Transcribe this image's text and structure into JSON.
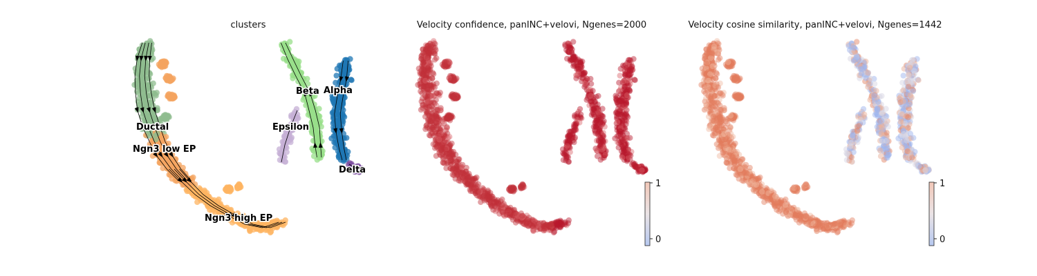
{
  "chart_data": [
    {
      "type": "scatter",
      "title": "clusters",
      "legend": "on data",
      "colors": {
        "Ductal": "#8fbc8f",
        "Ngn3 low EP": "#f4a460",
        "Ngn3 high EP": "#fdb462",
        "Epsilon": "#c5b0d5",
        "Beta": "#98df8a",
        "Alpha": "#1f77b4",
        "Delta": "#7e4fa0"
      },
      "series": [
        {
          "name": "Ductal"
        },
        {
          "name": "Ngn3 low EP"
        },
        {
          "name": "Ngn3 high EP"
        },
        {
          "name": "Epsilon"
        },
        {
          "name": "Beta"
        },
        {
          "name": "Alpha"
        },
        {
          "name": "Delta"
        }
      ],
      "overlay": "velocity streamlines"
    },
    {
      "type": "scatter",
      "title": "Velocity confidence, panINC+velovi, Ngenes=2000",
      "colorbar": {
        "ticks": [
          "1",
          "0"
        ],
        "range": [
          0,
          1
        ],
        "cmap": "coolwarm"
      },
      "point_color": "#c0303a"
    },
    {
      "type": "scatter",
      "title": "Velocity cosine similarity, panINC+velovi, Ngenes=1442",
      "colorbar": {
        "ticks": [
          "1",
          "0"
        ],
        "range": [
          0,
          1
        ],
        "cmap": "coolwarm"
      },
      "point_color": "#e07a5f"
    }
  ]
}
